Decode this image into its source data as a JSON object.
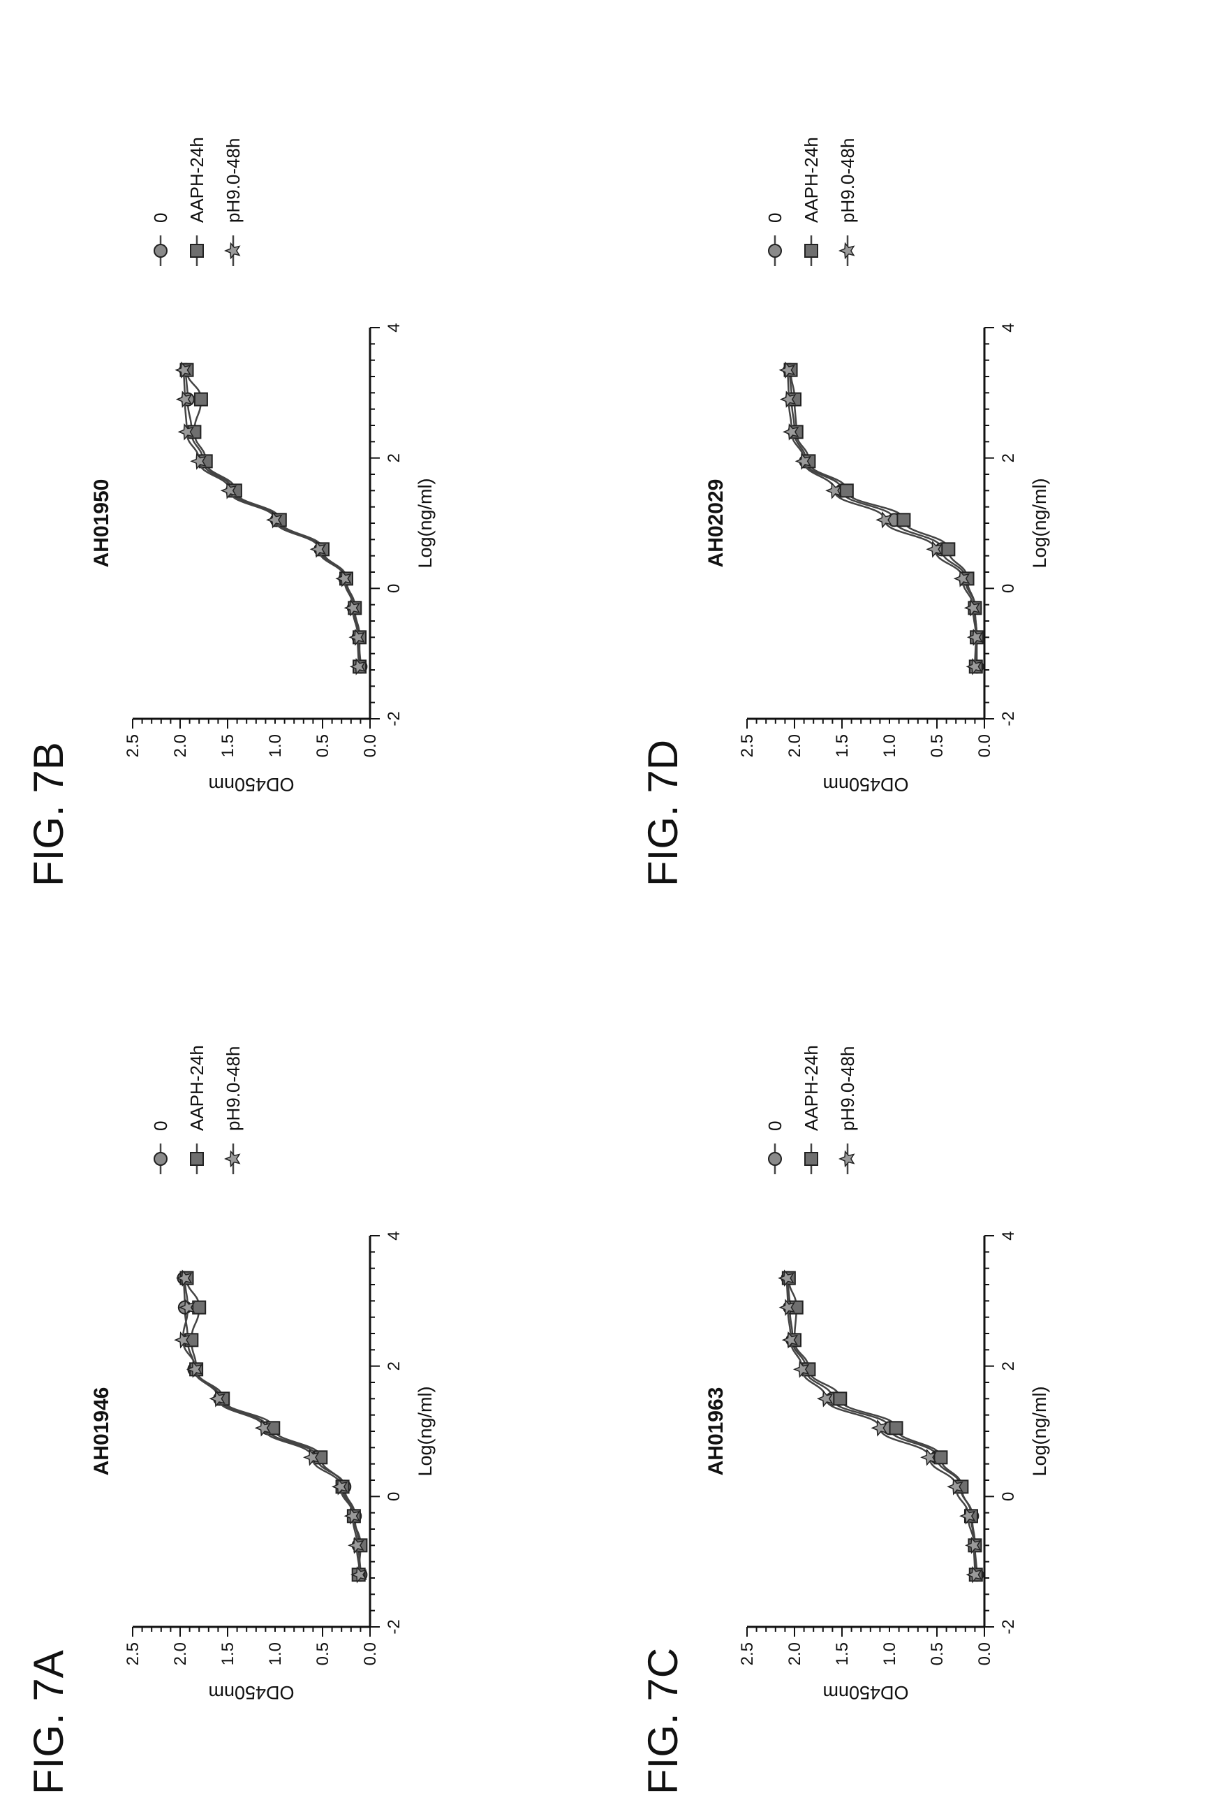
{
  "panels": [
    {
      "figure_label": "FIG. 7A"
    },
    {
      "figure_label": "FIG. 7B"
    },
    {
      "figure_label": "FIG. 7C"
    },
    {
      "figure_label": "FIG. 7D"
    }
  ],
  "chart_data": [
    {
      "type": "line",
      "title": "AH01946",
      "xlabel": "Log(ng/ml)",
      "ylabel": "OD450nm",
      "xlim": [
        -2,
        4
      ],
      "ylim": [
        0,
        2.5
      ],
      "xticks": [
        "-2",
        "0",
        "2",
        "4"
      ],
      "yticks": [
        "0.0",
        "0.5",
        "1.0",
        "1.5",
        "2.0",
        "2.5"
      ],
      "legend_position": "right",
      "series": [
        {
          "name": "0",
          "marker": "circle",
          "x": [
            -1.2,
            -0.75,
            -0.3,
            0.15,
            0.6,
            1.05,
            1.5,
            1.95,
            2.4,
            2.9,
            3.35
          ],
          "y": [
            0.1,
            0.12,
            0.16,
            0.27,
            0.56,
            1.08,
            1.58,
            1.85,
            1.92,
            1.95,
            1.96
          ]
        },
        {
          "name": "AAPH-24h",
          "marker": "square",
          "x": [
            -1.2,
            -0.75,
            -0.3,
            0.15,
            0.6,
            1.05,
            1.5,
            1.95,
            2.4,
            2.9,
            3.35
          ],
          "y": [
            0.12,
            0.1,
            0.17,
            0.29,
            0.52,
            1.02,
            1.55,
            1.83,
            1.88,
            1.8,
            1.93
          ]
        },
        {
          "name": "pH9.0-48h",
          "marker": "star",
          "x": [
            -1.2,
            -0.75,
            -0.3,
            0.15,
            0.6,
            1.05,
            1.5,
            1.95,
            2.4,
            2.9,
            3.35
          ],
          "y": [
            0.11,
            0.14,
            0.18,
            0.31,
            0.61,
            1.12,
            1.6,
            1.84,
            1.97,
            1.92,
            1.95
          ]
        }
      ]
    },
    {
      "type": "line",
      "title": "AH01950",
      "xlabel": "Log(ng/ml)",
      "ylabel": "OD450nm",
      "xlim": [
        -2,
        4
      ],
      "ylim": [
        0,
        2.5
      ],
      "xticks": [
        "-2",
        "0",
        "2",
        "4"
      ],
      "yticks": [
        "0.0",
        "0.5",
        "1.0",
        "1.5",
        "2.0",
        "2.5"
      ],
      "legend_position": "right",
      "series": [
        {
          "name": "0",
          "marker": "circle",
          "x": [
            -1.2,
            -0.75,
            -0.3,
            0.15,
            0.6,
            1.05,
            1.5,
            1.95,
            2.4,
            2.9,
            3.35
          ],
          "y": [
            0.1,
            0.12,
            0.17,
            0.26,
            0.52,
            0.98,
            1.45,
            1.76,
            1.88,
            1.92,
            1.94
          ]
        },
        {
          "name": "AAPH-24h",
          "marker": "square",
          "x": [
            -1.2,
            -0.75,
            -0.3,
            0.15,
            0.6,
            1.05,
            1.5,
            1.95,
            2.4,
            2.9,
            3.35
          ],
          "y": [
            0.11,
            0.11,
            0.16,
            0.25,
            0.5,
            0.95,
            1.42,
            1.73,
            1.85,
            1.78,
            1.93
          ]
        },
        {
          "name": "pH9.0-48h",
          "marker": "star",
          "x": [
            -1.2,
            -0.75,
            -0.3,
            0.15,
            0.6,
            1.05,
            1.5,
            1.95,
            2.4,
            2.9,
            3.35
          ],
          "y": [
            0.12,
            0.13,
            0.18,
            0.27,
            0.54,
            1.0,
            1.48,
            1.8,
            1.93,
            1.95,
            1.96
          ]
        }
      ]
    },
    {
      "type": "line",
      "title": "AH01963",
      "xlabel": "Log(ng/ml)",
      "ylabel": "OD450nm",
      "xlim": [
        -2,
        4
      ],
      "ylim": [
        0,
        2.5
      ],
      "xticks": [
        "-2",
        "0",
        "2",
        "4"
      ],
      "yticks": [
        "0.0",
        "0.5",
        "1.0",
        "1.5",
        "2.0",
        "2.5"
      ],
      "legend_position": "right",
      "series": [
        {
          "name": "0",
          "marker": "circle",
          "x": [
            -1.2,
            -0.75,
            -0.3,
            0.15,
            0.6,
            1.05,
            1.5,
            1.95,
            2.4,
            2.9,
            3.35
          ],
          "y": [
            0.08,
            0.1,
            0.13,
            0.25,
            0.5,
            1.0,
            1.6,
            1.88,
            2.02,
            2.05,
            2.07
          ]
        },
        {
          "name": "AAPH-24h",
          "marker": "square",
          "x": [
            -1.2,
            -0.75,
            -0.3,
            0.15,
            0.6,
            1.05,
            1.5,
            1.95,
            2.4,
            2.9,
            3.35
          ],
          "y": [
            0.09,
            0.1,
            0.14,
            0.24,
            0.46,
            0.93,
            1.52,
            1.85,
            2.0,
            1.98,
            2.06
          ]
        },
        {
          "name": "pH9.0-48h",
          "marker": "star",
          "x": [
            -1.2,
            -0.75,
            -0.3,
            0.15,
            0.6,
            1.05,
            1.5,
            1.95,
            2.4,
            2.9,
            3.35
          ],
          "y": [
            0.1,
            0.11,
            0.17,
            0.3,
            0.58,
            1.1,
            1.67,
            1.92,
            2.04,
            2.07,
            2.08
          ]
        }
      ]
    },
    {
      "type": "line",
      "title": "AH02029",
      "xlabel": "Log(ng/ml)",
      "ylabel": "OD450nm",
      "xlim": [
        -2,
        4
      ],
      "ylim": [
        0,
        2.5
      ],
      "xticks": [
        "-2",
        "0",
        "2",
        "4"
      ],
      "yticks": [
        "0.0",
        "0.5",
        "1.0",
        "1.5",
        "2.0",
        "2.5"
      ],
      "legend_position": "right",
      "series": [
        {
          "name": "0",
          "marker": "circle",
          "x": [
            -1.2,
            -0.75,
            -0.3,
            0.15,
            0.6,
            1.05,
            1.5,
            1.95,
            2.4,
            2.9,
            3.35
          ],
          "y": [
            0.08,
            0.08,
            0.1,
            0.2,
            0.45,
            0.95,
            1.5,
            1.88,
            2.0,
            2.03,
            2.05
          ]
        },
        {
          "name": "AAPH-24h",
          "marker": "square",
          "x": [
            -1.2,
            -0.75,
            -0.3,
            0.15,
            0.6,
            1.05,
            1.5,
            1.95,
            2.4,
            2.9,
            3.35
          ],
          "y": [
            0.09,
            0.08,
            0.1,
            0.18,
            0.38,
            0.85,
            1.45,
            1.85,
            1.98,
            2.0,
            2.04
          ]
        },
        {
          "name": "pH9.0-48h",
          "marker": "star",
          "x": [
            -1.2,
            -0.75,
            -0.3,
            0.15,
            0.6,
            1.05,
            1.5,
            1.95,
            2.4,
            2.9,
            3.35
          ],
          "y": [
            0.1,
            0.09,
            0.12,
            0.23,
            0.52,
            1.05,
            1.58,
            1.9,
            2.03,
            2.06,
            2.07
          ]
        }
      ]
    }
  ]
}
